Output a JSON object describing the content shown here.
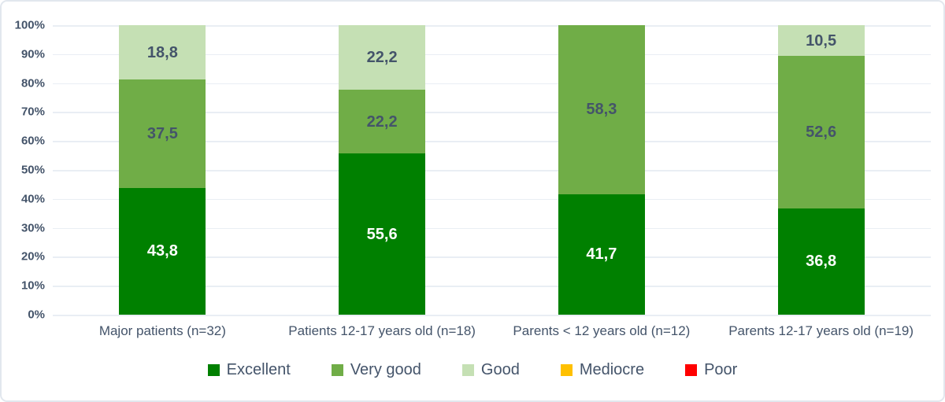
{
  "chart_data": {
    "type": "bar",
    "stacked": true,
    "unit": "%",
    "title": "",
    "xlabel": "",
    "ylabel": "",
    "ylim": [
      0,
      100
    ],
    "grid": true,
    "legend_position": "bottom",
    "y_ticks": [
      "0%",
      "10%",
      "20%",
      "30%",
      "40%",
      "50%",
      "60%",
      "70%",
      "80%",
      "90%",
      "100%"
    ],
    "categories": [
      "Major patients (n=32)",
      "Patients 12-17 years old (n=18)",
      "Parents < 12 years old (n=12)",
      "Parents 12-17 years old (n=19)"
    ],
    "series": [
      {
        "name": "Excellent",
        "color": "#008000",
        "label_color": "#ffffff",
        "values": [
          43.8,
          55.6,
          41.7,
          36.8
        ],
        "labels": [
          "43,8",
          "55,6",
          "41,7",
          "36,8"
        ]
      },
      {
        "name": "Very good",
        "color": "#70ad47",
        "label_color": "#44546a",
        "values": [
          37.5,
          22.2,
          58.3,
          52.6
        ],
        "labels": [
          "37,5",
          "22,2",
          "58,3",
          "52,6"
        ]
      },
      {
        "name": "Good",
        "color": "#c5e0b4",
        "label_color": "#44546a",
        "values": [
          18.8,
          22.2,
          0,
          10.5
        ],
        "labels": [
          "18,8",
          "22,2",
          null,
          "10,5"
        ]
      },
      {
        "name": "Mediocre",
        "color": "#ffc000",
        "label_color": "#44546a",
        "values": [
          0,
          0,
          0,
          0
        ],
        "labels": [
          null,
          null,
          null,
          null
        ]
      },
      {
        "name": "Poor",
        "color": "#ff0000",
        "label_color": "#ffffff",
        "values": [
          0,
          0,
          0,
          0
        ],
        "labels": [
          null,
          null,
          null,
          null
        ]
      }
    ]
  },
  "colors": {
    "text": "#44546a",
    "gridline": "#e9eef4",
    "border": "#e2e7ee",
    "background": "#ffffff"
  }
}
